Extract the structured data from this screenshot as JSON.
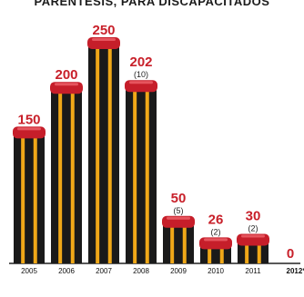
{
  "chart_data": {
    "type": "bar",
    "title": "PARENTESIS, PARA DISCAPACITADOS",
    "categories": [
      "2005",
      "2006",
      "2007",
      "2008",
      "2009",
      "2010",
      "2011",
      "2012*"
    ],
    "values": [
      150,
      200,
      250,
      202,
      50,
      26,
      30,
      0
    ],
    "value_labels": [
      "150",
      "200",
      "250",
      "202",
      "50",
      "26",
      "30",
      "0"
    ],
    "sub_labels": [
      "",
      "",
      "",
      "(10)",
      "(5)",
      "(2)",
      "(2)",
      ""
    ],
    "ylim": [
      0,
      250
    ],
    "grid": false,
    "legend": "none",
    "footnote": "",
    "colors": {
      "bar_dark": "#1a1a1a",
      "bar_stripe": "#f0a818",
      "cap": "#c61e2a",
      "cap_highlight": "#e6555e",
      "label": "#c8202a"
    }
  }
}
